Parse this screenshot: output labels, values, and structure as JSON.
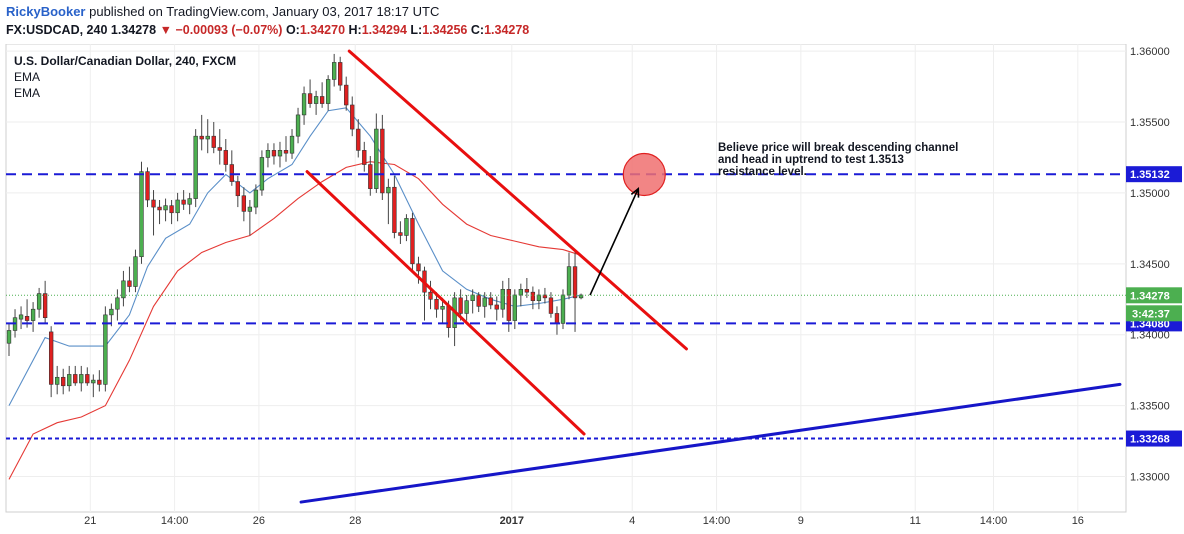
{
  "header": {
    "author": "RickyBooker",
    "published_text": "published on TradingView.com, January 03, 2017 18:17 UTC",
    "symbol": "FX:USDCAD, 240",
    "last": "1.34278",
    "change_arrow": "▼",
    "change": "−0.00093 (−0.07%)",
    "open_label": "O:",
    "open": "1.34270",
    "high_label": "H:",
    "high": "1.34294",
    "low_label": "L:",
    "low": "1.34256",
    "close_label": "C:",
    "close": "1.34278"
  },
  "chart_data": {
    "type": "candlestick",
    "title": "U.S. Dollar/Canadian Dollar, 240, FXCM",
    "indicators": [
      "EMA",
      "EMA"
    ],
    "y_axis": {
      "ylim": [
        1.3275,
        1.3605
      ],
      "ticks": [
        1.33,
        1.335,
        1.34,
        1.345,
        1.35,
        1.355,
        1.36
      ],
      "tick_labels": [
        "1.33000",
        "1.33500",
        "1.34000",
        "1.34500",
        "1.35000",
        "1.35500",
        "1.36000"
      ]
    },
    "x_axis": {
      "tick_labels": [
        {
          "i": 13.5,
          "label": "21",
          "bold": false
        },
        {
          "i": 27.5,
          "label": "14:00",
          "bold": false
        },
        {
          "i": 41.5,
          "label": "26",
          "bold": false
        },
        {
          "i": 57.5,
          "label": "28",
          "bold": false
        },
        {
          "i": 83.5,
          "label": "2017",
          "bold": true
        },
        {
          "i": 103.5,
          "label": "4",
          "bold": false
        },
        {
          "i": 117.5,
          "label": "14:00",
          "bold": false
        },
        {
          "i": 131.5,
          "label": "9",
          "bold": false
        },
        {
          "i": 150.5,
          "label": "11",
          "bold": false
        },
        {
          "i": 163.5,
          "label": "14:00",
          "bold": false
        },
        {
          "i": 177.5,
          "label": "16",
          "bold": false
        }
      ]
    },
    "bar_count_visible": 186,
    "candles": [
      {
        "i": 0,
        "o": 1.3394,
        "h": 1.3408,
        "l": 1.3385,
        "c": 1.3403
      },
      {
        "i": 1,
        "o": 1.3403,
        "h": 1.3418,
        "l": 1.3398,
        "c": 1.3412
      },
      {
        "i": 2,
        "o": 1.3411,
        "h": 1.342,
        "l": 1.3404,
        "c": 1.3414
      },
      {
        "i": 3,
        "o": 1.3413,
        "h": 1.3425,
        "l": 1.3405,
        "c": 1.341
      },
      {
        "i": 4,
        "o": 1.341,
        "h": 1.3423,
        "l": 1.3402,
        "c": 1.3418
      },
      {
        "i": 5,
        "o": 1.3418,
        "h": 1.3433,
        "l": 1.3412,
        "c": 1.3429
      },
      {
        "i": 6,
        "o": 1.3429,
        "h": 1.3438,
        "l": 1.3408,
        "c": 1.3412
      },
      {
        "i": 7,
        "o": 1.3402,
        "h": 1.3406,
        "l": 1.3356,
        "c": 1.3365
      },
      {
        "i": 8,
        "o": 1.3365,
        "h": 1.3378,
        "l": 1.3358,
        "c": 1.337
      },
      {
        "i": 9,
        "o": 1.337,
        "h": 1.3376,
        "l": 1.3358,
        "c": 1.3364
      },
      {
        "i": 10,
        "o": 1.3364,
        "h": 1.3378,
        "l": 1.336,
        "c": 1.3372
      },
      {
        "i": 11,
        "o": 1.3372,
        "h": 1.3378,
        "l": 1.3364,
        "c": 1.3366
      },
      {
        "i": 12,
        "o": 1.3366,
        "h": 1.3378,
        "l": 1.336,
        "c": 1.3372
      },
      {
        "i": 13,
        "o": 1.3372,
        "h": 1.3377,
        "l": 1.3364,
        "c": 1.3366
      },
      {
        "i": 14,
        "o": 1.3366,
        "h": 1.3372,
        "l": 1.3356,
        "c": 1.3368
      },
      {
        "i": 15,
        "o": 1.3368,
        "h": 1.3375,
        "l": 1.336,
        "c": 1.3365
      },
      {
        "i": 16,
        "o": 1.3365,
        "h": 1.342,
        "l": 1.336,
        "c": 1.3414
      },
      {
        "i": 17,
        "o": 1.3414,
        "h": 1.3422,
        "l": 1.3406,
        "c": 1.3418
      },
      {
        "i": 18,
        "o": 1.3418,
        "h": 1.3432,
        "l": 1.341,
        "c": 1.3426
      },
      {
        "i": 19,
        "o": 1.3426,
        "h": 1.3445,
        "l": 1.342,
        "c": 1.3438
      },
      {
        "i": 20,
        "o": 1.3438,
        "h": 1.3448,
        "l": 1.343,
        "c": 1.3434
      },
      {
        "i": 21,
        "o": 1.3434,
        "h": 1.346,
        "l": 1.343,
        "c": 1.3455
      },
      {
        "i": 22,
        "o": 1.3455,
        "h": 1.3522,
        "l": 1.345,
        "c": 1.3515
      },
      {
        "i": 23,
        "o": 1.3515,
        "h": 1.3518,
        "l": 1.349,
        "c": 1.3495
      },
      {
        "i": 24,
        "o": 1.3495,
        "h": 1.3502,
        "l": 1.347,
        "c": 1.349
      },
      {
        "i": 25,
        "o": 1.349,
        "h": 1.3495,
        "l": 1.3478,
        "c": 1.3488
      },
      {
        "i": 26,
        "o": 1.3488,
        "h": 1.3496,
        "l": 1.348,
        "c": 1.3491
      },
      {
        "i": 27,
        "o": 1.3491,
        "h": 1.3495,
        "l": 1.3478,
        "c": 1.3486
      },
      {
        "i": 28,
        "o": 1.3486,
        "h": 1.35,
        "l": 1.348,
        "c": 1.3495
      },
      {
        "i": 29,
        "o": 1.3495,
        "h": 1.3502,
        "l": 1.3488,
        "c": 1.3492
      },
      {
        "i": 30,
        "o": 1.3492,
        "h": 1.35,
        "l": 1.3485,
        "c": 1.3496
      },
      {
        "i": 31,
        "o": 1.3496,
        "h": 1.3545,
        "l": 1.349,
        "c": 1.354
      },
      {
        "i": 32,
        "o": 1.354,
        "h": 1.3555,
        "l": 1.353,
        "c": 1.3538
      },
      {
        "i": 33,
        "o": 1.3538,
        "h": 1.3552,
        "l": 1.3528,
        "c": 1.354
      },
      {
        "i": 34,
        "o": 1.354,
        "h": 1.355,
        "l": 1.3528,
        "c": 1.3532
      },
      {
        "i": 35,
        "o": 1.3532,
        "h": 1.3545,
        "l": 1.352,
        "c": 1.353
      },
      {
        "i": 36,
        "o": 1.353,
        "h": 1.3538,
        "l": 1.3515,
        "c": 1.352
      },
      {
        "i": 37,
        "o": 1.352,
        "h": 1.353,
        "l": 1.3505,
        "c": 1.3508
      },
      {
        "i": 38,
        "o": 1.3508,
        "h": 1.3512,
        "l": 1.349,
        "c": 1.3498
      },
      {
        "i": 39,
        "o": 1.3498,
        "h": 1.3504,
        "l": 1.348,
        "c": 1.3487
      },
      {
        "i": 40,
        "o": 1.3487,
        "h": 1.3495,
        "l": 1.347,
        "c": 1.349
      },
      {
        "i": 41,
        "o": 1.349,
        "h": 1.3506,
        "l": 1.3485,
        "c": 1.3502
      },
      {
        "i": 42,
        "o": 1.3502,
        "h": 1.353,
        "l": 1.3498,
        "c": 1.3525
      },
      {
        "i": 43,
        "o": 1.3525,
        "h": 1.3535,
        "l": 1.3518,
        "c": 1.353
      },
      {
        "i": 44,
        "o": 1.353,
        "h": 1.3535,
        "l": 1.352,
        "c": 1.3526
      },
      {
        "i": 45,
        "o": 1.3526,
        "h": 1.3536,
        "l": 1.3518,
        "c": 1.353
      },
      {
        "i": 46,
        "o": 1.353,
        "h": 1.354,
        "l": 1.3522,
        "c": 1.3528
      },
      {
        "i": 47,
        "o": 1.3528,
        "h": 1.3545,
        "l": 1.3524,
        "c": 1.354
      },
      {
        "i": 48,
        "o": 1.354,
        "h": 1.356,
        "l": 1.3535,
        "c": 1.3555
      },
      {
        "i": 49,
        "o": 1.3555,
        "h": 1.3575,
        "l": 1.3548,
        "c": 1.357
      },
      {
        "i": 50,
        "o": 1.357,
        "h": 1.358,
        "l": 1.356,
        "c": 1.3563
      },
      {
        "i": 51,
        "o": 1.3563,
        "h": 1.3572,
        "l": 1.3555,
        "c": 1.3568
      },
      {
        "i": 52,
        "o": 1.3568,
        "h": 1.3578,
        "l": 1.356,
        "c": 1.3563
      },
      {
        "i": 53,
        "o": 1.3563,
        "h": 1.3583,
        "l": 1.3558,
        "c": 1.358
      },
      {
        "i": 54,
        "o": 1.358,
        "h": 1.3598,
        "l": 1.3575,
        "c": 1.3592
      },
      {
        "i": 55,
        "o": 1.3592,
        "h": 1.3596,
        "l": 1.3572,
        "c": 1.3576
      },
      {
        "i": 56,
        "o": 1.3576,
        "h": 1.3582,
        "l": 1.3558,
        "c": 1.3562
      },
      {
        "i": 57,
        "o": 1.3562,
        "h": 1.3568,
        "l": 1.354,
        "c": 1.3545
      },
      {
        "i": 58,
        "o": 1.3545,
        "h": 1.3552,
        "l": 1.3525,
        "c": 1.353
      },
      {
        "i": 59,
        "o": 1.353,
        "h": 1.3536,
        "l": 1.3515,
        "c": 1.352
      },
      {
        "i": 60,
        "o": 1.352,
        "h": 1.3526,
        "l": 1.3498,
        "c": 1.3503
      },
      {
        "i": 61,
        "o": 1.3503,
        "h": 1.3556,
        "l": 1.35,
        "c": 1.3545
      },
      {
        "i": 62,
        "o": 1.3545,
        "h": 1.3555,
        "l": 1.3495,
        "c": 1.35
      },
      {
        "i": 63,
        "o": 1.35,
        "h": 1.351,
        "l": 1.3478,
        "c": 1.3504
      },
      {
        "i": 64,
        "o": 1.3504,
        "h": 1.3512,
        "l": 1.3468,
        "c": 1.3472
      },
      {
        "i": 65,
        "o": 1.3472,
        "h": 1.348,
        "l": 1.3464,
        "c": 1.347
      },
      {
        "i": 66,
        "o": 1.347,
        "h": 1.3485,
        "l": 1.3466,
        "c": 1.3482
      },
      {
        "i": 67,
        "o": 1.3482,
        "h": 1.3486,
        "l": 1.3445,
        "c": 1.345
      },
      {
        "i": 68,
        "o": 1.345,
        "h": 1.3455,
        "l": 1.3436,
        "c": 1.3445
      },
      {
        "i": 69,
        "o": 1.3445,
        "h": 1.3448,
        "l": 1.341,
        "c": 1.343
      },
      {
        "i": 70,
        "o": 1.343,
        "h": 1.3438,
        "l": 1.3418,
        "c": 1.3425
      },
      {
        "i": 71,
        "o": 1.3425,
        "h": 1.343,
        "l": 1.3412,
        "c": 1.3418
      },
      {
        "i": 72,
        "o": 1.3418,
        "h": 1.3426,
        "l": 1.3408,
        "c": 1.342
      },
      {
        "i": 73,
        "o": 1.342,
        "h": 1.3424,
        "l": 1.3398,
        "c": 1.3405
      },
      {
        "i": 74,
        "o": 1.3405,
        "h": 1.343,
        "l": 1.3392,
        "c": 1.3426
      },
      {
        "i": 75,
        "o": 1.3426,
        "h": 1.3432,
        "l": 1.341,
        "c": 1.3415
      },
      {
        "i": 76,
        "o": 1.3415,
        "h": 1.3428,
        "l": 1.341,
        "c": 1.3424
      },
      {
        "i": 77,
        "o": 1.3424,
        "h": 1.3432,
        "l": 1.3415,
        "c": 1.3428
      },
      {
        "i": 78,
        "o": 1.3428,
        "h": 1.343,
        "l": 1.3416,
        "c": 1.342
      },
      {
        "i": 79,
        "o": 1.342,
        "h": 1.343,
        "l": 1.3412,
        "c": 1.3426
      },
      {
        "i": 80,
        "o": 1.3426,
        "h": 1.343,
        "l": 1.3418,
        "c": 1.3421
      },
      {
        "i": 81,
        "o": 1.3421,
        "h": 1.3427,
        "l": 1.341,
        "c": 1.3418
      },
      {
        "i": 82,
        "o": 1.3418,
        "h": 1.3438,
        "l": 1.3412,
        "c": 1.3432
      },
      {
        "i": 83,
        "o": 1.3432,
        "h": 1.344,
        "l": 1.3402,
        "c": 1.341
      },
      {
        "i": 84,
        "o": 1.341,
        "h": 1.3432,
        "l": 1.3404,
        "c": 1.3428
      },
      {
        "i": 85,
        "o": 1.3428,
        "h": 1.3436,
        "l": 1.342,
        "c": 1.3432
      },
      {
        "i": 86,
        "o": 1.3432,
        "h": 1.344,
        "l": 1.3426,
        "c": 1.343
      },
      {
        "i": 87,
        "o": 1.343,
        "h": 1.3434,
        "l": 1.3418,
        "c": 1.3424
      },
      {
        "i": 88,
        "o": 1.3424,
        "h": 1.3432,
        "l": 1.3418,
        "c": 1.3428
      },
      {
        "i": 89,
        "o": 1.3428,
        "h": 1.3433,
        "l": 1.3422,
        "c": 1.3426
      },
      {
        "i": 90,
        "o": 1.3426,
        "h": 1.343,
        "l": 1.3412,
        "c": 1.3415
      },
      {
        "i": 91,
        "o": 1.3415,
        "h": 1.342,
        "l": 1.34,
        "c": 1.3408
      },
      {
        "i": 92,
        "o": 1.3408,
        "h": 1.3432,
        "l": 1.3404,
        "c": 1.3428
      },
      {
        "i": 93,
        "o": 1.3428,
        "h": 1.3458,
        "l": 1.3425,
        "c": 1.3448
      },
      {
        "i": 94,
        "o": 1.3448,
        "h": 1.3458,
        "l": 1.3402,
        "c": 1.3426
      },
      {
        "i": 95,
        "o": 1.3426,
        "h": 1.3429,
        "l": 1.3425,
        "c": 1.3428
      }
    ],
    "ema_fast": [
      [
        0,
        1.335
      ],
      [
        6,
        1.3398
      ],
      [
        10,
        1.3392
      ],
      [
        16,
        1.3392
      ],
      [
        20,
        1.3414
      ],
      [
        23,
        1.3448
      ],
      [
        26,
        1.3468
      ],
      [
        30,
        1.3478
      ],
      [
        33,
        1.35
      ],
      [
        36,
        1.3513
      ],
      [
        40,
        1.35
      ],
      [
        43,
        1.351
      ],
      [
        47,
        1.352
      ],
      [
        50,
        1.354
      ],
      [
        53,
        1.3558
      ],
      [
        56,
        1.356
      ],
      [
        60,
        1.354
      ],
      [
        64,
        1.3513
      ],
      [
        68,
        1.3478
      ],
      [
        72,
        1.3445
      ],
      [
        76,
        1.3432
      ],
      [
        80,
        1.3425
      ],
      [
        84,
        1.342
      ],
      [
        88,
        1.3422
      ],
      [
        92,
        1.3425
      ],
      [
        95,
        1.3428
      ]
    ],
    "ema_slow": [
      [
        0,
        1.3298
      ],
      [
        4,
        1.333
      ],
      [
        8,
        1.3338
      ],
      [
        12,
        1.3342
      ],
      [
        16,
        1.335
      ],
      [
        20,
        1.3382
      ],
      [
        24,
        1.342
      ],
      [
        28,
        1.3445
      ],
      [
        32,
        1.3458
      ],
      [
        36,
        1.3465
      ],
      [
        40,
        1.347
      ],
      [
        44,
        1.3482
      ],
      [
        48,
        1.3496
      ],
      [
        52,
        1.3508
      ],
      [
        56,
        1.3518
      ],
      [
        60,
        1.3522
      ],
      [
        64,
        1.352
      ],
      [
        68,
        1.351
      ],
      [
        72,
        1.3492
      ],
      [
        76,
        1.3478
      ],
      [
        80,
        1.347
      ],
      [
        84,
        1.3466
      ],
      [
        88,
        1.3462
      ],
      [
        92,
        1.346
      ],
      [
        95,
        1.3456
      ]
    ],
    "horizontal_lines": [
      {
        "price": 1.35132,
        "label": "1.35132",
        "style": "dashed",
        "color": "#1b1bd6"
      },
      {
        "price": 1.3408,
        "label": "1.34080",
        "style": "dashed",
        "color": "#1b1bd6"
      },
      {
        "price": 1.33268,
        "label": "1.33268",
        "style": "dotted",
        "color": "#1b1bd6"
      },
      {
        "price": 1.34278,
        "label": "1.34278",
        "style": "dotted",
        "color": "#4caf50"
      }
    ],
    "countdown_label": "3:42:37",
    "channel_upper": {
      "i1": 56.5,
      "p1": 1.36,
      "i2": 112.5,
      "p2": 1.339
    },
    "channel_lower": {
      "i1": 49.5,
      "p1": 1.3515,
      "i2": 95.5,
      "p2": 1.333
    },
    "trendline": {
      "i1": 48.5,
      "p1": 1.3282,
      "i2": 184.5,
      "p2": 1.3365
    },
    "target_circle": {
      "i": 105.5,
      "p": 1.3513
    },
    "arrow": {
      "i1": 96.5,
      "p1": 1.3428,
      "i2": 104.5,
      "p2": 1.3503
    },
    "annotation": [
      "Believe price will break descending channel",
      "and head in uptrend to test 1.3513",
      "resistance level."
    ],
    "colors": {
      "up": "#4caf50",
      "down": "#e02020",
      "ema_fast": "#5a8fc8",
      "ema_slow": "#e53935",
      "channel": "#e80f0f",
      "trend": "#1616c8",
      "grid": "#eeeeee",
      "axis_label_bg": "#1b1bd6",
      "price_label_bg": "#4caf50"
    }
  }
}
